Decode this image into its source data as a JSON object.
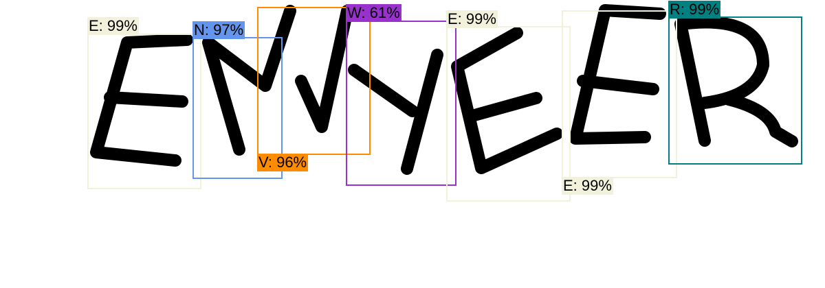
{
  "detections": [
    {
      "label": "E: 99%",
      "color": "#f1f1dc"
    },
    {
      "label": "N: 97%",
      "color": "#6495ed"
    },
    {
      "label": "V: 96%",
      "color": "#ff8c00"
    },
    {
      "label": "W: 61%",
      "color": "#9932cc"
    },
    {
      "label": "E: 99%",
      "color": "#f1f1dc"
    },
    {
      "label": "E: 99%",
      "color": "#f1f1dc"
    },
    {
      "label": "R: 99%",
      "color": "#008080"
    }
  ]
}
